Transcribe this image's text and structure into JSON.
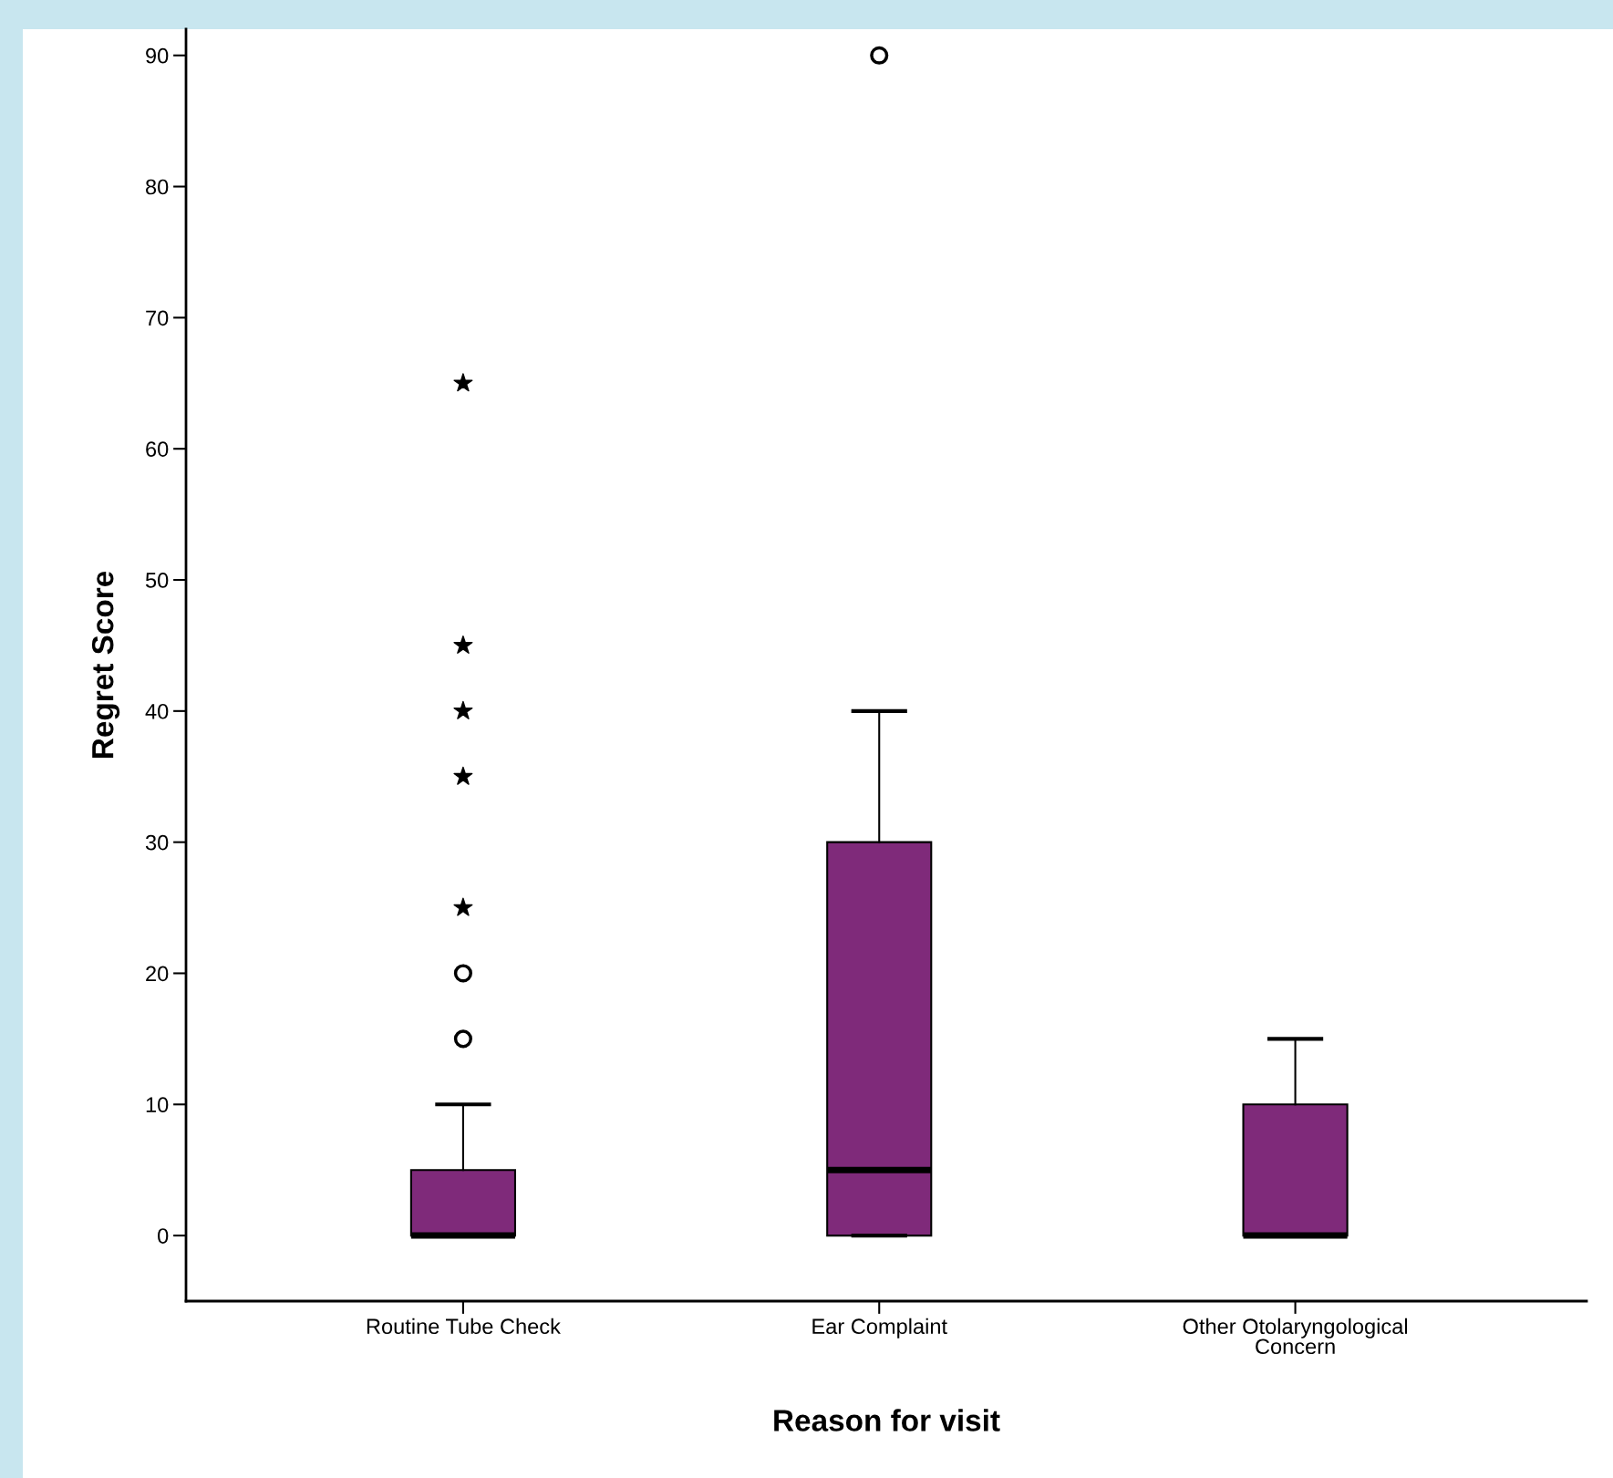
{
  "chart_data": {
    "type": "box",
    "xlabel": "Reason for visit",
    "ylabel": "Regret Score",
    "categories": [
      "Routine Tube Check",
      "Ear Complaint",
      "Other Otolaryngological\nConcern"
    ],
    "boxes": [
      {
        "low": 0,
        "q1": 0,
        "median": 0,
        "q3": 5,
        "high": 10,
        "outliers": [
          15,
          20
        ]
      },
      {
        "low": 0,
        "q1": 0,
        "median": 5,
        "q3": 30,
        "high": 40,
        "outliers": [
          90
        ]
      },
      {
        "low": 0,
        "q1": 0,
        "median": 0,
        "q3": 10,
        "high": 15
      }
    ],
    "color": "#7f2a7a",
    "marker": "circle",
    "series": [
      {
        "type": "scatter",
        "marker": "star",
        "color": "#000000",
        "x": [
          "Routine Tube Check",
          "Routine Tube Check",
          "Routine Tube Check",
          "Routine Tube Check",
          "Routine Tube Check"
        ],
        "values": [
          25,
          35,
          40,
          45,
          65
        ]
      }
    ],
    "ylim": [
      -5,
      92
    ],
    "yticks": [
      0,
      10,
      20,
      30,
      40,
      50,
      60,
      70,
      80,
      90
    ],
    "grid": false,
    "legend": false
  }
}
